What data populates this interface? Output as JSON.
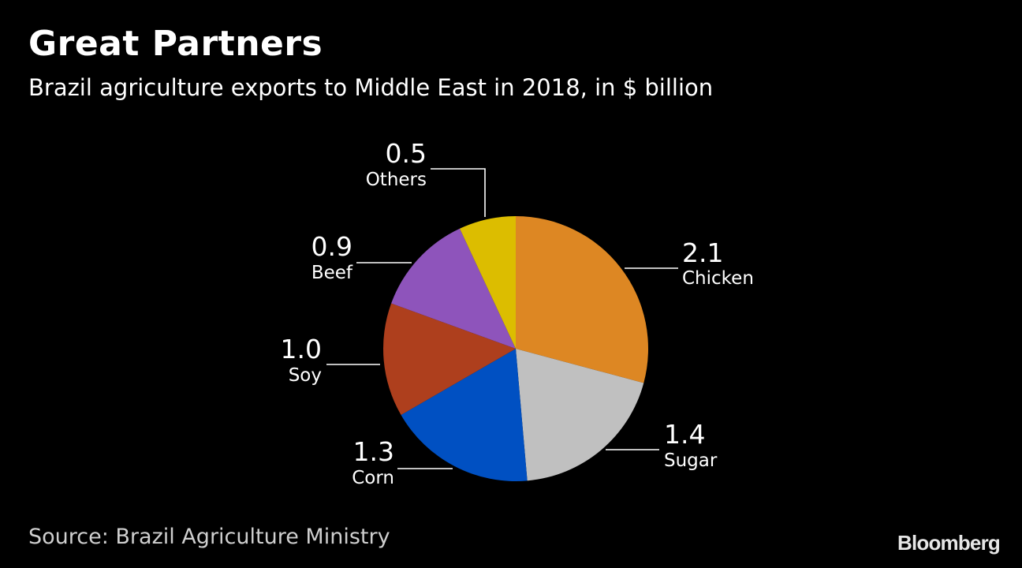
{
  "header": {
    "title": "Great Partners",
    "subtitle": "Brazil agriculture exports to Middle East in 2018, in $ billion"
  },
  "footer": {
    "source": "Source: Brazil Agriculture Ministry",
    "brand": "Bloomberg"
  },
  "colors": {
    "background": "#000000",
    "text": "#ffffff",
    "leader_line": "#ffffff"
  },
  "chart_data": {
    "type": "pie",
    "title": "Great Partners",
    "subtitle": "Brazil agriculture exports to Middle East in 2018, in $ billion",
    "unit": "$ billion",
    "slices": [
      {
        "name": "Chicken",
        "value_label": "2.1",
        "value": 2.1,
        "color": "#dd8723"
      },
      {
        "name": "Sugar",
        "value_label": "1.4",
        "value": 1.4,
        "color": "#c0c0c0"
      },
      {
        "name": "Corn",
        "value_label": "1.3",
        "value": 1.3,
        "color": "#0050c2"
      },
      {
        "name": "Soy",
        "value_label": "1.0",
        "value": 1.0,
        "color": "#ae3f1d"
      },
      {
        "name": "Beef",
        "value_label": "0.9",
        "value": 0.9,
        "color": "#8e54bb"
      },
      {
        "name": "Others",
        "value_label": "0.5",
        "value": 0.5,
        "color": "#dcbd00"
      }
    ],
    "start": "12 o'clock",
    "direction": "clockwise",
    "labels": "outside with leader lines"
  }
}
